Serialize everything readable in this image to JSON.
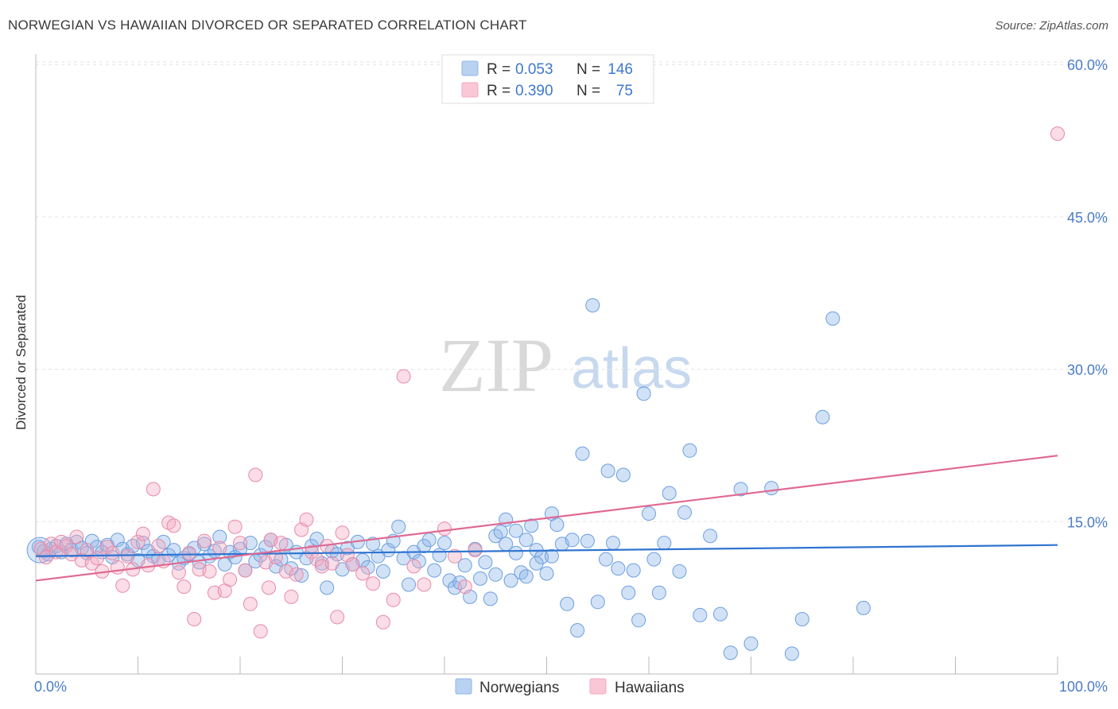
{
  "title": "NORWEGIAN VS HAWAIIAN DIVORCED OR SEPARATED CORRELATION CHART",
  "source": "Source: ZipAtlas.com",
  "watermark": {
    "part1": "ZIP",
    "part2": "atlas"
  },
  "legend_top": {
    "rows": [
      {
        "r_label": "R = ",
        "r_value": "0.053",
        "n_label": "N = ",
        "n_value": "146",
        "color": "#8fb7e8"
      },
      {
        "r_label": "R = ",
        "r_value": "0.390",
        "n_label": "N = ",
        "n_value": "75",
        "color": "#f3a9c0"
      }
    ]
  },
  "legend_bottom": {
    "items": [
      "Norwegians",
      "Hawaiians"
    ]
  },
  "chart_data": {
    "type": "scatter",
    "title": "NORWEGIAN VS HAWAIIAN DIVORCED OR SEPARATED CORRELATION CHART",
    "xlabel": "",
    "ylabel": "Divorced or Separated",
    "xlim": [
      0,
      100
    ],
    "ylim": [
      0,
      62
    ],
    "x_tick_labels": [
      "0.0%",
      "100.0%"
    ],
    "y_ticks": [
      15,
      30,
      45,
      60
    ],
    "y_tick_labels": [
      "15.0%",
      "30.0%",
      "45.0%",
      "60.0%"
    ],
    "grid": "horizontal dashed",
    "legend_position": "top-center",
    "colors": {
      "Norwegians": "#4a86d8",
      "Hawaiians": "#e8729a"
    },
    "series": [
      {
        "name": "Norwegians",
        "trend": {
          "x": [
            0,
            100
          ],
          "y": [
            11.6,
            12.7
          ]
        },
        "points": [
          [
            0.3,
            12.5
          ],
          [
            0.8,
            12.1
          ],
          [
            1.2,
            11.8
          ],
          [
            1.5,
            12.3
          ],
          [
            2,
            12.6
          ],
          [
            2.5,
            12.0
          ],
          [
            3,
            12.8
          ],
          [
            3.5,
            12.2
          ],
          [
            4,
            13.0
          ],
          [
            4.5,
            12.4
          ],
          [
            5,
            11.9
          ],
          [
            5.5,
            13.1
          ],
          [
            6,
            12.5
          ],
          [
            6.5,
            12.0
          ],
          [
            7,
            12.7
          ],
          [
            7.5,
            11.5
          ],
          [
            8,
            13.2
          ],
          [
            8.5,
            12.3
          ],
          [
            9,
            11.8
          ],
          [
            9.5,
            12.6
          ],
          [
            10,
            11.2
          ],
          [
            10.5,
            12.9
          ],
          [
            11,
            12.1
          ],
          [
            11.5,
            11.6
          ],
          [
            12,
            11.3
          ],
          [
            12.5,
            13.0
          ],
          [
            13,
            11.7
          ],
          [
            13.5,
            12.2
          ],
          [
            14,
            10.9
          ],
          [
            14.5,
            11.4
          ],
          [
            15,
            11.8
          ],
          [
            15.5,
            12.4
          ],
          [
            16,
            11.0
          ],
          [
            16.5,
            12.8
          ],
          [
            17,
            11.6
          ],
          [
            17.5,
            12.1
          ],
          [
            18,
            13.5
          ],
          [
            18.5,
            10.8
          ],
          [
            19,
            12.0
          ],
          [
            19.5,
            11.5
          ],
          [
            20,
            12.3
          ],
          [
            20.5,
            10.2
          ],
          [
            21,
            12.9
          ],
          [
            21.5,
            11.1
          ],
          [
            22,
            11.7
          ],
          [
            22.5,
            12.5
          ],
          [
            23,
            13.2
          ],
          [
            23.5,
            10.6
          ],
          [
            24,
            11.3
          ],
          [
            24.5,
            12.7
          ],
          [
            25,
            10.4
          ],
          [
            25.5,
            12.0
          ],
          [
            26,
            9.7
          ],
          [
            26.5,
            11.4
          ],
          [
            27,
            12.6
          ],
          [
            27.5,
            13.3
          ],
          [
            28,
            10.9
          ],
          [
            28.5,
            8.5
          ],
          [
            29,
            12.1
          ],
          [
            29.5,
            11.8
          ],
          [
            30,
            10.3
          ],
          [
            30.5,
            12.4
          ],
          [
            31,
            10.8
          ],
          [
            31.5,
            13.0
          ],
          [
            32,
            11.2
          ],
          [
            32.5,
            10.5
          ],
          [
            33,
            12.8
          ],
          [
            33.5,
            11.6
          ],
          [
            34,
            10.1
          ],
          [
            34.5,
            12.2
          ],
          [
            35,
            13.1
          ],
          [
            35.5,
            14.5
          ],
          [
            36,
            11.4
          ],
          [
            36.5,
            8.8
          ],
          [
            37,
            12.0
          ],
          [
            37.5,
            11.1
          ],
          [
            38,
            12.6
          ],
          [
            38.5,
            13.2
          ],
          [
            39,
            10.2
          ],
          [
            39.5,
            11.7
          ],
          [
            40,
            12.9
          ],
          [
            40.5,
            9.2
          ],
          [
            41,
            8.5
          ],
          [
            41.5,
            9.0
          ],
          [
            42,
            10.7
          ],
          [
            42.5,
            7.6
          ],
          [
            43,
            12.3
          ],
          [
            43.5,
            9.4
          ],
          [
            44,
            11.0
          ],
          [
            44.5,
            7.4
          ],
          [
            45,
            13.6
          ],
          [
            45.5,
            14.0
          ],
          [
            46,
            12.8
          ],
          [
            46.5,
            9.2
          ],
          [
            47,
            11.9
          ],
          [
            47.5,
            10.0
          ],
          [
            48,
            13.2
          ],
          [
            48.5,
            14.6
          ],
          [
            49,
            12.2
          ],
          [
            49.5,
            11.5
          ],
          [
            50,
            9.9
          ],
          [
            50.5,
            11.6
          ],
          [
            51,
            14.7
          ],
          [
            52,
            6.9
          ],
          [
            53,
            4.3
          ],
          [
            54,
            13.1
          ],
          [
            55,
            7.1
          ],
          [
            55.8,
            11.3
          ],
          [
            56.5,
            12.9
          ],
          [
            57,
            10.4
          ],
          [
            58,
            8.0
          ],
          [
            59,
            5.3
          ],
          [
            60,
            15.8
          ],
          [
            61,
            8.0
          ],
          [
            62,
            17.8
          ],
          [
            63,
            10.1
          ],
          [
            64,
            22.0
          ],
          [
            65,
            5.8
          ],
          [
            66,
            13.6
          ],
          [
            67,
            5.9
          ],
          [
            68,
            2.1
          ],
          [
            69,
            18.2
          ],
          [
            70,
            3.0
          ],
          [
            72,
            18.3
          ],
          [
            74,
            2.0
          ],
          [
            75,
            5.4
          ],
          [
            77,
            25.3
          ],
          [
            78,
            35.0
          ],
          [
            81,
            6.5
          ],
          [
            53.5,
            21.7
          ],
          [
            56,
            20.0
          ],
          [
            57.5,
            19.6
          ],
          [
            60.5,
            11.3
          ],
          [
            63.5,
            15.9
          ],
          [
            51.5,
            12.8
          ],
          [
            52.5,
            13.2
          ],
          [
            58.5,
            10.2
          ],
          [
            61.5,
            12.9
          ],
          [
            54.5,
            36.3
          ],
          [
            59.5,
            27.6
          ],
          [
            46,
            15.2
          ],
          [
            48,
            9.6
          ],
          [
            49,
            10.9
          ],
          [
            50.5,
            15.8
          ],
          [
            47,
            14.1
          ],
          [
            45,
            9.8
          ]
        ]
      },
      {
        "name": "Hawaiians",
        "trend": {
          "x": [
            0,
            100
          ],
          "y": [
            9.2,
            21.5
          ]
        },
        "points": [
          [
            0.5,
            12.3
          ],
          [
            1,
            11.5
          ],
          [
            1.5,
            12.8
          ],
          [
            2,
            12.0
          ],
          [
            2.5,
            13.0
          ],
          [
            3,
            12.6
          ],
          [
            3.5,
            11.8
          ],
          [
            4,
            13.5
          ],
          [
            4.5,
            11.2
          ],
          [
            5,
            12.2
          ],
          [
            5.5,
            10.9
          ],
          [
            6,
            11.4
          ],
          [
            6.5,
            10.1
          ],
          [
            7,
            12.5
          ],
          [
            7.5,
            11.9
          ],
          [
            8,
            10.5
          ],
          [
            8.5,
            8.7
          ],
          [
            9,
            11.6
          ],
          [
            9.5,
            10.3
          ],
          [
            10,
            13.0
          ],
          [
            10.5,
            13.8
          ],
          [
            11,
            10.7
          ],
          [
            11.5,
            18.2
          ],
          [
            12,
            12.6
          ],
          [
            12.5,
            11.1
          ],
          [
            13,
            14.9
          ],
          [
            13.5,
            14.6
          ],
          [
            14,
            10.0
          ],
          [
            14.5,
            8.6
          ],
          [
            15,
            11.9
          ],
          [
            15.5,
            5.4
          ],
          [
            16,
            10.3
          ],
          [
            16.5,
            13.1
          ],
          [
            17,
            10.1
          ],
          [
            17.5,
            8.0
          ],
          [
            18,
            12.4
          ],
          [
            18.5,
            8.2
          ],
          [
            19,
            9.3
          ],
          [
            19.5,
            14.5
          ],
          [
            20,
            12.9
          ],
          [
            20.5,
            10.2
          ],
          [
            21,
            6.9
          ],
          [
            21.5,
            19.6
          ],
          [
            22,
            4.2
          ],
          [
            22.5,
            11.0
          ],
          [
            23,
            13.2
          ],
          [
            23.5,
            11.5
          ],
          [
            24,
            12.9
          ],
          [
            24.5,
            10.1
          ],
          [
            25,
            7.6
          ],
          [
            25.5,
            9.8
          ],
          [
            26,
            14.2
          ],
          [
            26.5,
            15.2
          ],
          [
            27,
            12.0
          ],
          [
            27.5,
            11.3
          ],
          [
            28,
            10.6
          ],
          [
            28.5,
            12.6
          ],
          [
            29,
            10.9
          ],
          [
            29.5,
            5.6
          ],
          [
            30,
            13.9
          ],
          [
            30.5,
            11.7
          ],
          [
            31,
            10.8
          ],
          [
            32,
            9.9
          ],
          [
            33,
            8.9
          ],
          [
            34,
            5.1
          ],
          [
            35,
            7.3
          ],
          [
            36,
            29.3
          ],
          [
            37,
            10.6
          ],
          [
            38,
            8.8
          ],
          [
            40,
            14.3
          ],
          [
            41,
            11.6
          ],
          [
            42,
            8.6
          ],
          [
            43,
            12.2
          ],
          [
            22.8,
            8.5
          ],
          [
            100,
            53.2
          ]
        ]
      }
    ]
  }
}
